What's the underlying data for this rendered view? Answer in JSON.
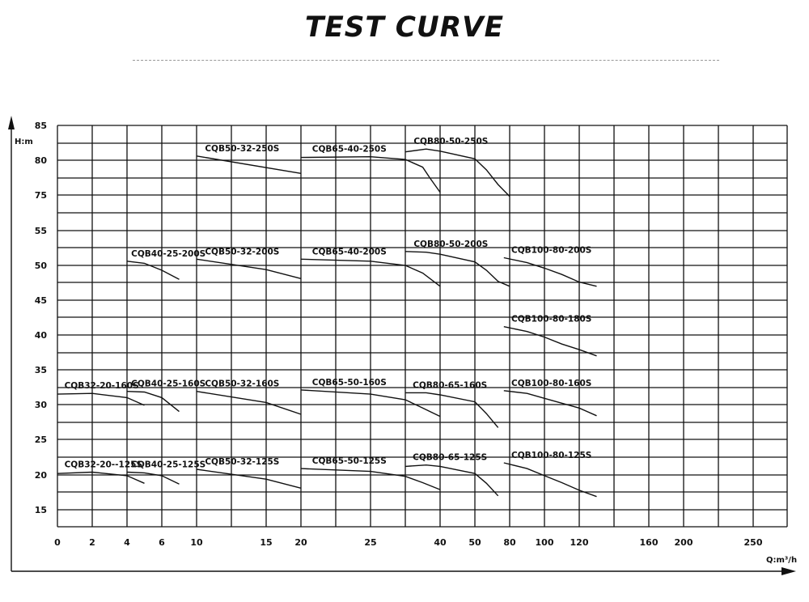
{
  "title": "TEST CURVE",
  "chart_data": {
    "type": "line",
    "title": "TEST CURVE",
    "xlabel": "Q:m³/h",
    "ylabel": "H:m",
    "x_tick_labels": [
      "0",
      "2",
      "4",
      "6",
      "10",
      "15",
      "20",
      "25",
      "40",
      "50",
      "80",
      "100",
      "120",
      "160",
      "200",
      "250"
    ],
    "y_tick_labels": [
      "15",
      "20",
      "25",
      "30",
      "35",
      "40",
      "45",
      "50",
      "55",
      "75",
      "80",
      "85"
    ],
    "y_ticks": [
      15,
      20,
      25,
      30,
      35,
      40,
      45,
      50,
      55,
      75,
      80,
      85
    ],
    "x_tick_positions": [
      0,
      2,
      4,
      6,
      10,
      15,
      20,
      25,
      40,
      50,
      80,
      100,
      120,
      160,
      200,
      250
    ],
    "x_scale": "non-linear (segmented)",
    "grid": true,
    "series": [
      {
        "name": "CQB50-32-250S",
        "points": [
          [
            10,
            80.6
          ],
          [
            20,
            78.1
          ]
        ]
      },
      {
        "name": "CQB65-40-250S",
        "points": [
          [
            20,
            80.4
          ],
          [
            25,
            80.5
          ],
          [
            30,
            80.1
          ],
          [
            35,
            79.0
          ],
          [
            37,
            77.5
          ],
          [
            40,
            75.4
          ]
        ]
      },
      {
        "name": "CQB80-50-250S",
        "points": [
          [
            30,
            81.2
          ],
          [
            36,
            81.6
          ],
          [
            40,
            81.3
          ],
          [
            50,
            80.2
          ],
          [
            60,
            78.6
          ],
          [
            70,
            76.5
          ],
          [
            80,
            74.2
          ]
        ]
      },
      {
        "name": "CQB40-25-200S",
        "points": [
          [
            4,
            50.6
          ],
          [
            5,
            50.3
          ],
          [
            6,
            49.3
          ],
          [
            8,
            48.0
          ]
        ]
      },
      {
        "name": "CQB50-32-200S",
        "points": [
          [
            10,
            50.9
          ],
          [
            15,
            49.4
          ],
          [
            20,
            48.1
          ]
        ]
      },
      {
        "name": "CQB65-40-200S",
        "points": [
          [
            20,
            50.9
          ],
          [
            25,
            50.6
          ],
          [
            30,
            50.0
          ],
          [
            35,
            48.9
          ],
          [
            40,
            47.0
          ]
        ]
      },
      {
        "name": "CQB80-50-200S",
        "points": [
          [
            30,
            52.0
          ],
          [
            36,
            51.9
          ],
          [
            40,
            51.6
          ],
          [
            50,
            50.5
          ],
          [
            60,
            49.3
          ],
          [
            70,
            47.7
          ],
          [
            80,
            47.0
          ]
        ]
      },
      {
        "name": "CQB100-80-200S",
        "points": [
          [
            75,
            51.1
          ],
          [
            90,
            50.4
          ],
          [
            100,
            49.6
          ],
          [
            110,
            48.7
          ],
          [
            120,
            47.6
          ],
          [
            130,
            47.0
          ]
        ]
      },
      {
        "name": "CQB100-80-180S",
        "points": [
          [
            75,
            41.2
          ],
          [
            90,
            40.5
          ],
          [
            100,
            39.7
          ],
          [
            110,
            38.7
          ],
          [
            120,
            37.9
          ],
          [
            130,
            37.0
          ]
        ]
      },
      {
        "name": "CQB32-20-160S",
        "points": [
          [
            0,
            31.5
          ],
          [
            2,
            31.6
          ],
          [
            4,
            31.0
          ],
          [
            5,
            29.9
          ]
        ]
      },
      {
        "name": "CQB40-25-160S",
        "points": [
          [
            4,
            31.9
          ],
          [
            5,
            31.8
          ],
          [
            6,
            31.0
          ],
          [
            8,
            29.0
          ]
        ]
      },
      {
        "name": "CQB50-32-160S",
        "points": [
          [
            10,
            31.9
          ],
          [
            15,
            30.3
          ],
          [
            20,
            28.6
          ]
        ]
      },
      {
        "name": "CQB65-50-160S",
        "points": [
          [
            20,
            32.1
          ],
          [
            25,
            31.5
          ],
          [
            30,
            30.7
          ],
          [
            35,
            29.5
          ],
          [
            40,
            28.3
          ]
        ]
      },
      {
        "name": "CQB80-65-160S",
        "points": [
          [
            30,
            31.7
          ],
          [
            36,
            31.7
          ],
          [
            40,
            31.4
          ],
          [
            50,
            30.4
          ],
          [
            60,
            28.7
          ],
          [
            70,
            26.7
          ]
        ]
      },
      {
        "name": "CQB100-80-160S",
        "points": [
          [
            75,
            32.0
          ],
          [
            90,
            31.6
          ],
          [
            100,
            30.9
          ],
          [
            110,
            30.2
          ],
          [
            120,
            29.5
          ],
          [
            130,
            28.4
          ]
        ]
      },
      {
        "name": "CQB32-20--125S",
        "points": [
          [
            0,
            20.2
          ],
          [
            2,
            20.4
          ],
          [
            4,
            19.9
          ],
          [
            5,
            18.8
          ]
        ]
      },
      {
        "name": "CQB40-25-125S",
        "points": [
          [
            4,
            20.4
          ],
          [
            5,
            20.3
          ],
          [
            6,
            19.9
          ],
          [
            8,
            18.7
          ]
        ]
      },
      {
        "name": "CQB50-32-125S",
        "points": [
          [
            10,
            20.8
          ],
          [
            15,
            19.4
          ],
          [
            20,
            18.1
          ]
        ]
      },
      {
        "name": "CQB65-50-125S",
        "points": [
          [
            20,
            20.9
          ],
          [
            25,
            20.5
          ],
          [
            30,
            19.8
          ],
          [
            35,
            18.9
          ],
          [
            40,
            17.9
          ]
        ]
      },
      {
        "name": "CQB80-65-125S",
        "points": [
          [
            30,
            21.2
          ],
          [
            36,
            21.4
          ],
          [
            40,
            21.2
          ],
          [
            50,
            20.2
          ],
          [
            60,
            18.8
          ],
          [
            70,
            17.0
          ]
        ]
      },
      {
        "name": "CQB100-80-125S",
        "points": [
          [
            75,
            21.7
          ],
          [
            90,
            20.9
          ],
          [
            100,
            19.9
          ],
          [
            110,
            18.9
          ],
          [
            120,
            17.8
          ],
          [
            130,
            16.9
          ]
        ]
      }
    ]
  }
}
